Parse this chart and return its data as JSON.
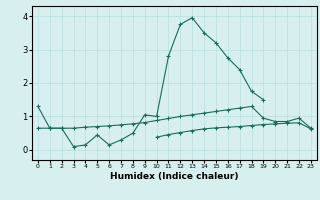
{
  "x": [
    0,
    1,
    2,
    3,
    4,
    5,
    6,
    7,
    8,
    9,
    10,
    11,
    12,
    13,
    14,
    15,
    16,
    17,
    18,
    19,
    20,
    21,
    22,
    23
  ],
  "line1": [
    1.3,
    0.65,
    0.65,
    0.1,
    0.15,
    0.45,
    0.15,
    0.3,
    0.5,
    1.05,
    1.0,
    2.8,
    3.75,
    3.95,
    3.5,
    3.2,
    2.75,
    2.4,
    1.75,
    1.5,
    null,
    null,
    null,
    null
  ],
  "line3": [
    0.65,
    0.65,
    0.65,
    0.65,
    0.68,
    0.7,
    0.72,
    0.75,
    0.78,
    0.82,
    0.88,
    0.94,
    1.0,
    1.05,
    1.1,
    1.15,
    1.2,
    1.25,
    1.3,
    0.95,
    0.85,
    0.85,
    0.95,
    0.65
  ],
  "line4": [
    null,
    null,
    null,
    null,
    null,
    null,
    null,
    null,
    null,
    null,
    0.38,
    0.46,
    0.52,
    0.58,
    0.63,
    0.66,
    0.68,
    0.7,
    0.73,
    0.76,
    0.78,
    0.8,
    0.81,
    0.63
  ],
  "xlabel": "Humidex (Indice chaleur)",
  "ylim": [
    -0.3,
    4.3
  ],
  "xlim": [
    -0.5,
    23.5
  ],
  "color": "#1a6b5a",
  "bg_color": "#d7f0ef",
  "grid_color": "#b8dede",
  "grid_color_minor": "#c8e8e8"
}
